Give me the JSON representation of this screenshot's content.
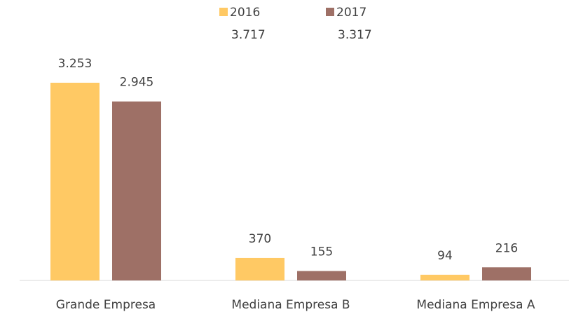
{
  "chart_data": {
    "type": "bar",
    "categories": [
      "Grande Empresa",
      "Mediana Empresa B",
      "Mediana Empresa A"
    ],
    "series": [
      {
        "name": "2016",
        "color": "#ffc964",
        "values": [
          3253,
          370,
          94
        ],
        "value_labels": [
          "3.253",
          "370",
          "94"
        ],
        "total": 3717,
        "total_label": "3.717"
      },
      {
        "name": "2017",
        "color": "#9e7066",
        "values": [
          2945,
          155,
          216
        ],
        "value_labels": [
          "2.945",
          "155",
          "216"
        ],
        "total": 3317,
        "total_label": "3.317"
      }
    ]
  }
}
